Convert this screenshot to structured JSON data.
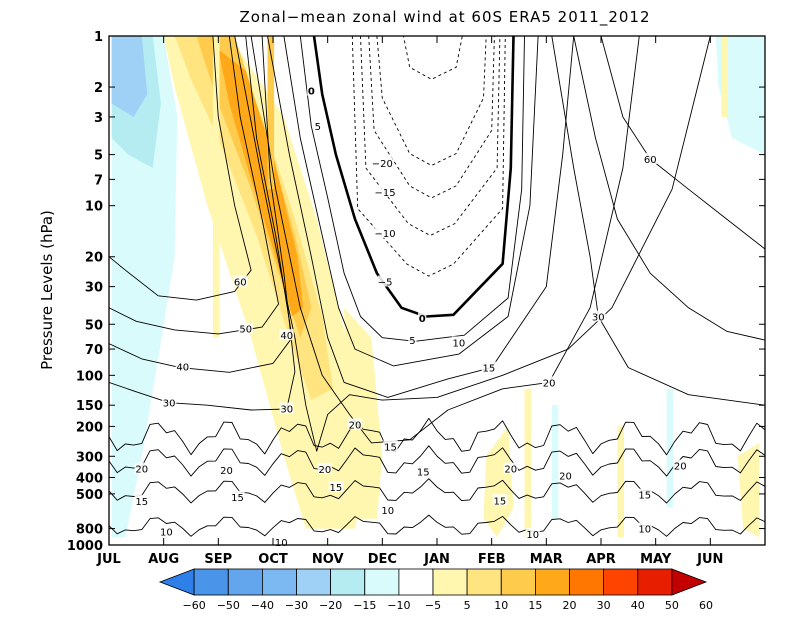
{
  "chart_data": {
    "type": "heatmap",
    "title": "Zonal−mean zonal wind at 60S ERA5 2011_2012",
    "xlabel": "",
    "ylabel": "Pressure Levels (hPa)",
    "yscale": "log",
    "ylim": [
      1000,
      1
    ],
    "x_ticks": [
      "JUL",
      "AUG",
      "SEP",
      "OCT",
      "NOV",
      "DEC",
      "JAN",
      "FEB",
      "MAR",
      "APR",
      "MAY",
      "JUN"
    ],
    "y_ticks": [
      1,
      2,
      3,
      5,
      7,
      10,
      20,
      30,
      50,
      70,
      100,
      150,
      200,
      300,
      400,
      500,
      800,
      1000
    ],
    "y_tick_labels": [
      "1",
      "2",
      "3",
      "5",
      "7",
      "10",
      "20",
      "30",
      "50",
      "70",
      "100",
      "150",
      "200",
      "300",
      "400",
      "500",
      "800",
      "1000"
    ],
    "colorbar": {
      "boundaries": [
        "−60",
        "−50",
        "−40",
        "−30",
        "−20",
        "−15",
        "−10",
        "−5",
        "5",
        "10",
        "15",
        "20",
        "30",
        "40",
        "50",
        "60"
      ],
      "colors": [
        "#2e7fe8",
        "#4a94ea",
        "#63a6ee",
        "#7cb8f2",
        "#9fd0f6",
        "#b5ecf1",
        "#d9fbfb",
        "#ffffff",
        "#fff7b0",
        "#ffe480",
        "#ffcb4c",
        "#ffa91a",
        "#ff7700",
        "#ff4400",
        "#e81e00",
        "#c20000"
      ]
    },
    "contour_labels": [
      {
        "month": 3.7,
        "hpa": 2.1,
        "text": "0",
        "bold": true
      },
      {
        "month": 3.82,
        "hpa": 3.4,
        "text": "5"
      },
      {
        "month": 5.0,
        "hpa": 5.6,
        "text": "−20"
      },
      {
        "month": 5.05,
        "hpa": 8.3,
        "text": "−15"
      },
      {
        "month": 5.05,
        "hpa": 14.5,
        "text": "−10"
      },
      {
        "month": 5.05,
        "hpa": 28,
        "text": "−5"
      },
      {
        "month": 5.73,
        "hpa": 46,
        "text": "0",
        "bold": true
      },
      {
        "month": 5.55,
        "hpa": 62,
        "text": "5"
      },
      {
        "month": 6.4,
        "hpa": 64,
        "text": "10"
      },
      {
        "month": 6.95,
        "hpa": 90,
        "text": "15"
      },
      {
        "month": 8.05,
        "hpa": 110,
        "text": "20"
      },
      {
        "month": 8.95,
        "hpa": 45,
        "text": "30"
      },
      {
        "month": 9.9,
        "hpa": 5.3,
        "text": "60"
      },
      {
        "month": 2.4,
        "hpa": 28,
        "text": "60"
      },
      {
        "month": 2.5,
        "hpa": 53,
        "text": "50"
      },
      {
        "month": 3.25,
        "hpa": 58,
        "text": "40"
      },
      {
        "month": 1.35,
        "hpa": 89,
        "text": "40"
      },
      {
        "month": 1.1,
        "hpa": 145,
        "text": "30"
      },
      {
        "month": 3.25,
        "hpa": 157,
        "text": "30"
      },
      {
        "month": 4.5,
        "hpa": 195,
        "text": "20"
      },
      {
        "month": 5.15,
        "hpa": 262,
        "text": "15"
      },
      {
        "month": 0.6,
        "hpa": 355,
        "text": "20"
      },
      {
        "month": 2.15,
        "hpa": 362,
        "text": "20"
      },
      {
        "month": 3.95,
        "hpa": 356,
        "text": "20"
      },
      {
        "month": 5.75,
        "hpa": 370,
        "text": "15"
      },
      {
        "month": 7.35,
        "hpa": 355,
        "text": "20"
      },
      {
        "month": 8.35,
        "hpa": 390,
        "text": "20"
      },
      {
        "month": 10.45,
        "hpa": 340,
        "text": "20"
      },
      {
        "month": 0.6,
        "hpa": 550,
        "text": "15"
      },
      {
        "month": 2.35,
        "hpa": 520,
        "text": "15"
      },
      {
        "month": 4.15,
        "hpa": 455,
        "text": "15"
      },
      {
        "month": 7.15,
        "hpa": 545,
        "text": "15"
      },
      {
        "month": 9.8,
        "hpa": 505,
        "text": "15"
      },
      {
        "month": 1.05,
        "hpa": 830,
        "text": "10"
      },
      {
        "month": 3.15,
        "hpa": 960,
        "text": "10"
      },
      {
        "month": 5.1,
        "hpa": 620,
        "text": "10"
      },
      {
        "month": 7.75,
        "hpa": 860,
        "text": "10"
      },
      {
        "month": 9.8,
        "hpa": 800,
        "text": "10"
      }
    ]
  }
}
